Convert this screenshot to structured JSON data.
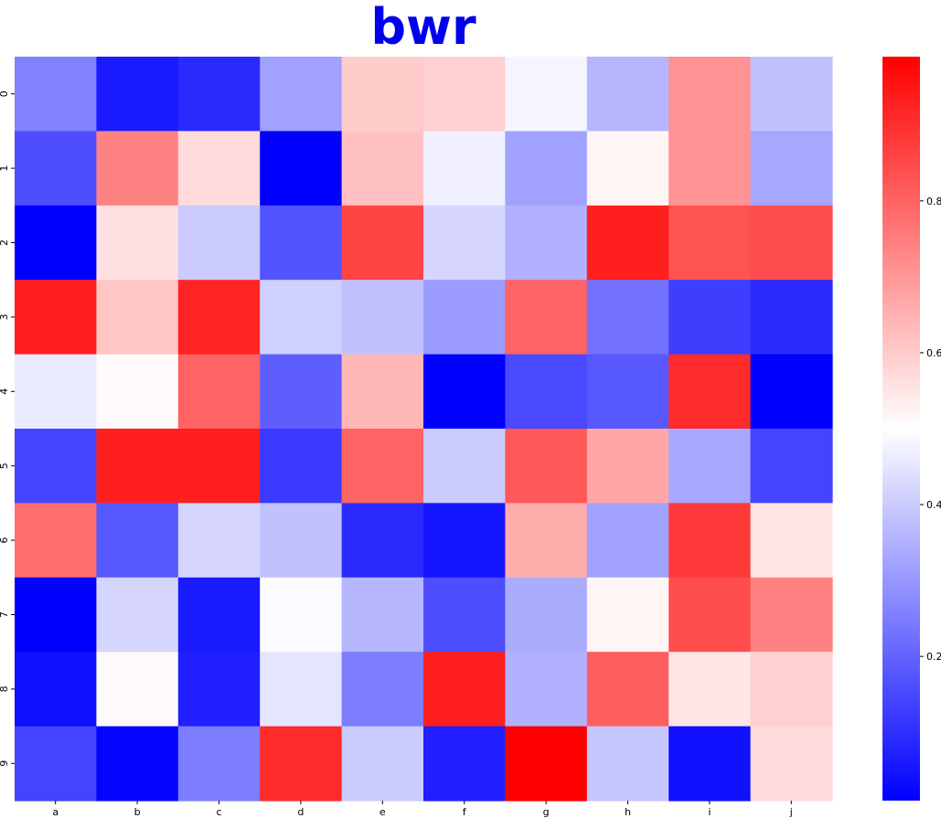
{
  "chart_data": {
    "type": "heatmap",
    "title": "bwr",
    "title_color": "#0000ee",
    "colormap": "bwr",
    "x_categories": [
      "a",
      "b",
      "c",
      "d",
      "e",
      "f",
      "g",
      "h",
      "i",
      "j"
    ],
    "y_categories": [
      "0",
      "1",
      "2",
      "3",
      "4",
      "5",
      "6",
      "7",
      "8",
      "9"
    ],
    "values": [
      [
        0.26,
        0.06,
        0.09,
        0.32,
        0.6,
        0.59,
        0.48,
        0.36,
        0.71,
        0.38
      ],
      [
        0.16,
        0.74,
        0.57,
        0.01,
        0.62,
        0.47,
        0.32,
        0.52,
        0.71,
        0.33
      ],
      [
        0.01,
        0.56,
        0.4,
        0.17,
        0.86,
        0.42,
        0.35,
        0.93,
        0.83,
        0.84
      ],
      [
        0.93,
        0.61,
        0.92,
        0.41,
        0.38,
        0.31,
        0.8,
        0.23,
        0.13,
        0.09
      ],
      [
        0.46,
        0.51,
        0.8,
        0.19,
        0.64,
        0.01,
        0.15,
        0.18,
        0.91,
        0.01
      ],
      [
        0.14,
        0.93,
        0.93,
        0.12,
        0.8,
        0.4,
        0.82,
        0.67,
        0.33,
        0.14
      ],
      [
        0.78,
        0.18,
        0.42,
        0.38,
        0.09,
        0.05,
        0.66,
        0.32,
        0.88,
        0.55
      ],
      [
        0.01,
        0.42,
        0.06,
        0.49,
        0.36,
        0.16,
        0.34,
        0.52,
        0.84,
        0.74
      ],
      [
        0.04,
        0.51,
        0.07,
        0.45,
        0.25,
        0.93,
        0.35,
        0.81,
        0.55,
        0.59
      ],
      [
        0.14,
        0.02,
        0.25,
        0.91,
        0.4,
        0.07,
        0.99,
        0.39,
        0.04,
        0.57
      ]
    ],
    "vmin": 0.01,
    "vmax": 0.99,
    "colorbar": {
      "ticks": [
        0.2,
        0.4,
        0.6,
        0.8
      ],
      "tick_labels": [
        "0.2",
        "0.4",
        "0.6",
        "0.8"
      ]
    },
    "grid": false,
    "legend": "colorbar-right"
  }
}
